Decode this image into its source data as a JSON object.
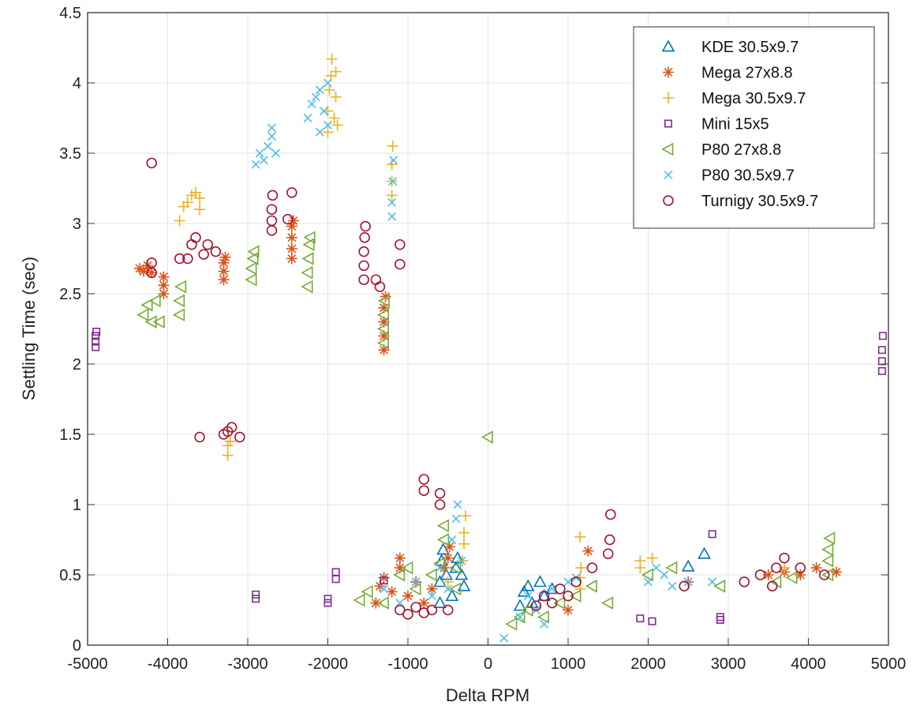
{
  "chart_data": {
    "type": "scatter",
    "title": "",
    "xlabel": "Delta RPM",
    "ylabel": "Settling Time (sec)",
    "xlim": [
      -5000,
      5000
    ],
    "ylim": [
      0,
      4.5
    ],
    "xticks": [
      -5000,
      -4000,
      -3000,
      -2000,
      -1000,
      0,
      1000,
      2000,
      3000,
      4000,
      5000
    ],
    "yticks": [
      0,
      0.5,
      1,
      1.5,
      2,
      2.5,
      3,
      3.5,
      4,
      4.5
    ],
    "xtick_labels": [
      "-5000",
      "-4000",
      "-3000",
      "-2000",
      "-1000",
      "0",
      "1000",
      "2000",
      "3000",
      "4000",
      "5000"
    ],
    "ytick_labels": [
      "0",
      "0.5",
      "1",
      "1.5",
      "2",
      "2.5",
      "3",
      "3.5",
      "4",
      "4.5"
    ],
    "grid": true,
    "legend_placement": "top-right",
    "series": [
      {
        "name": "KDE 30.5x9.7",
        "marker": "triangle-up",
        "color": "#0072BD",
        "points": [
          [
            -600,
            0.3
          ],
          [
            -600,
            0.45
          ],
          [
            -580,
            0.6
          ],
          [
            -560,
            0.68
          ],
          [
            -520,
            0.5
          ],
          [
            -450,
            0.35
          ],
          [
            -400,
            0.55
          ],
          [
            -380,
            0.62
          ],
          [
            -330,
            0.5
          ],
          [
            -300,
            0.42
          ],
          [
            400,
            0.28
          ],
          [
            450,
            0.38
          ],
          [
            500,
            0.42
          ],
          [
            550,
            0.3
          ],
          [
            650,
            0.45
          ],
          [
            700,
            0.35
          ],
          [
            800,
            0.4
          ],
          [
            2500,
            0.56
          ],
          [
            2700,
            0.65
          ]
        ]
      },
      {
        "name": "Mega 27x8.8",
        "marker": "asterisk",
        "color": "#D95319",
        "points": [
          [
            -4350,
            2.68
          ],
          [
            -4300,
            2.66
          ],
          [
            -4250,
            2.7
          ],
          [
            -4200,
            2.65
          ],
          [
            -4050,
            2.5
          ],
          [
            -4050,
            2.56
          ],
          [
            -4050,
            2.62
          ],
          [
            -3300,
            2.6
          ],
          [
            -3300,
            2.66
          ],
          [
            -3300,
            2.72
          ],
          [
            -3280,
            2.76
          ],
          [
            -2450,
            2.75
          ],
          [
            -2450,
            2.82
          ],
          [
            -2450,
            2.9
          ],
          [
            -2450,
            2.98
          ],
          [
            -2430,
            3.02
          ],
          [
            -1300,
            2.1
          ],
          [
            -1300,
            2.2
          ],
          [
            -1300,
            2.3
          ],
          [
            -1300,
            2.4
          ],
          [
            -1280,
            2.48
          ],
          [
            -1100,
            0.55
          ],
          [
            -1100,
            0.62
          ],
          [
            -1400,
            0.3
          ],
          [
            -1350,
            0.42
          ],
          [
            -1300,
            0.48
          ],
          [
            -1200,
            0.38
          ],
          [
            -1000,
            0.35
          ],
          [
            -900,
            0.45
          ],
          [
            -800,
            0.3
          ],
          [
            -700,
            0.4
          ],
          [
            -550,
            0.55
          ],
          [
            -500,
            0.62
          ],
          [
            -480,
            0.7
          ],
          [
            1000,
            0.25
          ],
          [
            1250,
            0.67
          ],
          [
            2500,
            0.45
          ],
          [
            3500,
            0.5
          ],
          [
            3700,
            0.52
          ],
          [
            3900,
            0.5
          ],
          [
            4100,
            0.55
          ],
          [
            4350,
            0.52
          ]
        ]
      },
      {
        "name": "Mega 30.5x9.7",
        "marker": "plus",
        "color": "#EDB120",
        "points": [
          [
            -3850,
            3.02
          ],
          [
            -3800,
            3.12
          ],
          [
            -3750,
            3.15
          ],
          [
            -3700,
            3.2
          ],
          [
            -3650,
            3.22
          ],
          [
            -3600,
            3.18
          ],
          [
            -3600,
            3.1
          ],
          [
            -3250,
            1.35
          ],
          [
            -3250,
            1.42
          ],
          [
            -3220,
            1.45
          ],
          [
            -2000,
            3.65
          ],
          [
            -2000,
            3.8
          ],
          [
            -1980,
            3.95
          ],
          [
            -1960,
            4.05
          ],
          [
            -1950,
            4.17
          ],
          [
            -1920,
            3.75
          ],
          [
            -1900,
            3.9
          ],
          [
            -1900,
            4.08
          ],
          [
            -1880,
            3.7
          ],
          [
            -1200,
            3.2
          ],
          [
            -1200,
            3.3
          ],
          [
            -1200,
            3.42
          ],
          [
            -1190,
            3.55
          ],
          [
            -500,
            0.45
          ],
          [
            -320,
            0.6
          ],
          [
            -300,
            0.72
          ],
          [
            -300,
            0.8
          ],
          [
            -280,
            0.92
          ],
          [
            1150,
            0.4
          ],
          [
            1150,
            0.48
          ],
          [
            1160,
            0.55
          ],
          [
            1150,
            0.77
          ],
          [
            1900,
            0.55
          ],
          [
            1900,
            0.6
          ],
          [
            2050,
            0.62
          ],
          [
            3700,
            0.55
          ]
        ]
      },
      {
        "name": "Mini 15x5",
        "marker": "square",
        "color": "#7E2F8E",
        "points": [
          [
            -4900,
            2.12
          ],
          [
            -4900,
            2.16
          ],
          [
            -4900,
            2.2
          ],
          [
            -4890,
            2.23
          ],
          [
            -2900,
            0.33
          ],
          [
            -2900,
            0.36
          ],
          [
            -2000,
            0.3
          ],
          [
            -2000,
            0.33
          ],
          [
            -1900,
            0.47
          ],
          [
            -1900,
            0.52
          ],
          [
            -1300,
            0.46
          ],
          [
            1900,
            0.19
          ],
          [
            2050,
            0.17
          ],
          [
            2900,
            0.18
          ],
          [
            2900,
            0.2
          ],
          [
            2800,
            0.79
          ],
          [
            4920,
            1.95
          ],
          [
            4920,
            2.02
          ],
          [
            4920,
            2.1
          ],
          [
            4930,
            2.2
          ]
        ]
      },
      {
        "name": "P80 27x8.8",
        "marker": "triangle-left",
        "color": "#77AC30",
        "points": [
          [
            -4300,
            2.35
          ],
          [
            -4250,
            2.42
          ],
          [
            -4200,
            2.3
          ],
          [
            -4150,
            2.45
          ],
          [
            -4100,
            2.3
          ],
          [
            -3850,
            2.35
          ],
          [
            -3850,
            2.45
          ],
          [
            -3830,
            2.55
          ],
          [
            -2950,
            2.6
          ],
          [
            -2950,
            2.68
          ],
          [
            -2930,
            2.75
          ],
          [
            -2920,
            2.8
          ],
          [
            -2250,
            2.55
          ],
          [
            -2250,
            2.65
          ],
          [
            -2240,
            2.75
          ],
          [
            -2230,
            2.85
          ],
          [
            -2220,
            2.9
          ],
          [
            -1300,
            2.15
          ],
          [
            -1300,
            2.25
          ],
          [
            -1300,
            2.35
          ],
          [
            -1290,
            2.45
          ],
          [
            0,
            1.48
          ],
          [
            -1600,
            0.32
          ],
          [
            -1500,
            0.38
          ],
          [
            -1300,
            0.3
          ],
          [
            -1100,
            0.5
          ],
          [
            -1000,
            0.55
          ],
          [
            -900,
            0.4
          ],
          [
            -700,
            0.5
          ],
          [
            -600,
            0.58
          ],
          [
            -550,
            0.75
          ],
          [
            -550,
            0.85
          ],
          [
            -400,
            0.55
          ],
          [
            -400,
            0.4
          ],
          [
            300,
            0.15
          ],
          [
            400,
            0.2
          ],
          [
            500,
            0.25
          ],
          [
            700,
            0.2
          ],
          [
            900,
            0.3
          ],
          [
            1100,
            0.35
          ],
          [
            1300,
            0.42
          ],
          [
            1500,
            0.3
          ],
          [
            2000,
            0.5
          ],
          [
            2300,
            0.55
          ],
          [
            2900,
            0.42
          ],
          [
            3600,
            0.45
          ],
          [
            3800,
            0.48
          ],
          [
            4250,
            0.5
          ],
          [
            4250,
            0.6
          ],
          [
            4250,
            0.68
          ],
          [
            4270,
            0.76
          ]
        ]
      },
      {
        "name": "P80 30.5x9.7",
        "marker": "x",
        "color": "#4DBEEE",
        "points": [
          [
            -2900,
            3.42
          ],
          [
            -2850,
            3.5
          ],
          [
            -2800,
            3.45
          ],
          [
            -2750,
            3.55
          ],
          [
            -2700,
            3.62
          ],
          [
            -2700,
            3.68
          ],
          [
            -2650,
            3.5
          ],
          [
            -2250,
            3.75
          ],
          [
            -2200,
            3.85
          ],
          [
            -2150,
            3.9
          ],
          [
            -2100,
            3.65
          ],
          [
            -2100,
            3.95
          ],
          [
            -2050,
            3.8
          ],
          [
            -2000,
            4.0
          ],
          [
            -2000,
            3.7
          ],
          [
            -1200,
            3.05
          ],
          [
            -1200,
            3.15
          ],
          [
            -1190,
            3.3
          ],
          [
            -1180,
            3.45
          ],
          [
            -1300,
            0.4
          ],
          [
            -1100,
            0.3
          ],
          [
            -900,
            0.45
          ],
          [
            -700,
            0.35
          ],
          [
            -600,
            0.55
          ],
          [
            -500,
            0.4
          ],
          [
            -450,
            0.75
          ],
          [
            -400,
            0.9
          ],
          [
            -380,
            1.0
          ],
          [
            -330,
            0.6
          ],
          [
            200,
            0.05
          ],
          [
            400,
            0.2
          ],
          [
            500,
            0.35
          ],
          [
            600,
            0.25
          ],
          [
            700,
            0.15
          ],
          [
            800,
            0.4
          ],
          [
            1000,
            0.45
          ],
          [
            1100,
            0.48
          ],
          [
            2000,
            0.45
          ],
          [
            2100,
            0.55
          ],
          [
            2200,
            0.5
          ],
          [
            2300,
            0.42
          ],
          [
            2500,
            0.45
          ],
          [
            2800,
            0.45
          ]
        ]
      },
      {
        "name": "Turnigy 30.5x9.7",
        "marker": "circle",
        "color": "#A2142F",
        "points": [
          [
            -4200,
            3.43
          ],
          [
            -4200,
            2.65
          ],
          [
            -4200,
            2.72
          ],
          [
            -3850,
            2.75
          ],
          [
            -3750,
            2.75
          ],
          [
            -3700,
            2.85
          ],
          [
            -3650,
            2.9
          ],
          [
            -3550,
            2.78
          ],
          [
            -3500,
            2.85
          ],
          [
            -3400,
            2.8
          ],
          [
            -3600,
            1.48
          ],
          [
            -3300,
            1.5
          ],
          [
            -3250,
            1.52
          ],
          [
            -3200,
            1.55
          ],
          [
            -3100,
            1.48
          ],
          [
            -2700,
            2.95
          ],
          [
            -2700,
            3.02
          ],
          [
            -2700,
            3.1
          ],
          [
            -2690,
            3.2
          ],
          [
            -2500,
            3.03
          ],
          [
            -2450,
            3.22
          ],
          [
            -1550,
            2.6
          ],
          [
            -1550,
            2.7
          ],
          [
            -1550,
            2.8
          ],
          [
            -1540,
            2.9
          ],
          [
            -1530,
            2.98
          ],
          [
            -1400,
            2.6
          ],
          [
            -1350,
            2.55
          ],
          [
            -1100,
            2.85
          ],
          [
            -1100,
            2.71
          ],
          [
            -800,
            1.1
          ],
          [
            -800,
            1.18
          ],
          [
            -600,
            1.0
          ],
          [
            -600,
            1.08
          ],
          [
            -1100,
            0.25
          ],
          [
            -1000,
            0.22
          ],
          [
            -900,
            0.27
          ],
          [
            -800,
            0.23
          ],
          [
            -700,
            0.25
          ],
          [
            -500,
            0.25
          ],
          [
            600,
            0.28
          ],
          [
            700,
            0.35
          ],
          [
            800,
            0.3
          ],
          [
            900,
            0.4
          ],
          [
            1000,
            0.35
          ],
          [
            1100,
            0.45
          ],
          [
            1300,
            0.55
          ],
          [
            1500,
            0.65
          ],
          [
            1520,
            0.75
          ],
          [
            1530,
            0.93
          ],
          [
            2450,
            0.42
          ],
          [
            3200,
            0.45
          ],
          [
            3400,
            0.5
          ],
          [
            3550,
            0.42
          ],
          [
            3600,
            0.55
          ],
          [
            3700,
            0.62
          ],
          [
            3900,
            0.55
          ],
          [
            4200,
            0.5
          ]
        ]
      }
    ]
  }
}
